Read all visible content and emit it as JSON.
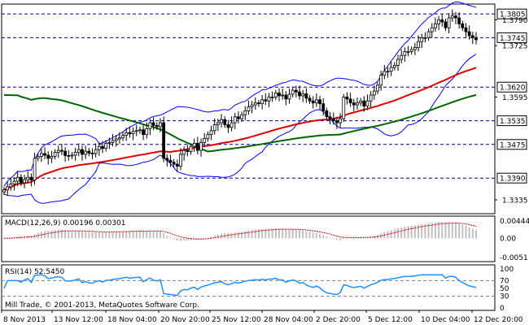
{
  "chart_data": [
    {
      "type": "line",
      "panel": "price",
      "ylim": [
        1.33,
        1.383
      ],
      "y_ticks": [
        "1.3790",
        "1.3725",
        "1.3595",
        "1.3335"
      ],
      "levels": [
        "1.3805",
        "1.3745",
        "1.3620",
        "1.3535",
        "1.3475",
        "1.3390"
      ],
      "x_count": 140,
      "colors": {
        "candles": "#000000",
        "bands": "#0000ff",
        "ma_red": "#dd0000",
        "ma_green": "#006600",
        "levels": "#0000aa"
      },
      "series": [
        {
          "values": [
            1.336,
            1.3368,
            1.3375,
            1.3382,
            1.3392,
            1.3378,
            1.3386,
            1.3392,
            1.3385,
            1.344,
            1.3445,
            1.3452,
            1.3448,
            1.344,
            1.3445,
            1.3455,
            1.346,
            1.3458,
            1.3447,
            1.3446,
            1.3448,
            1.3455,
            1.3462,
            1.345,
            1.3458,
            1.3453,
            1.3452,
            1.3462,
            1.347,
            1.3465,
            1.3478,
            1.348,
            1.3485,
            1.3489,
            1.3492,
            1.3498,
            1.3505,
            1.3502,
            1.3508,
            1.351,
            1.3512,
            1.35,
            1.3515,
            1.353,
            1.3523,
            1.352,
            1.353,
            1.344,
            1.3435,
            1.343,
            1.3425,
            1.342,
            1.345,
            1.346,
            1.3457,
            1.347,
            1.3478,
            1.346,
            1.348,
            1.349,
            1.35,
            1.351,
            1.3525,
            1.353,
            1.3538,
            1.3525,
            1.3518,
            1.353,
            1.3545,
            1.354,
            1.355,
            1.356,
            1.357,
            1.3575,
            1.358,
            1.3578,
            1.3588,
            1.3585,
            1.3595,
            1.3595,
            1.3605,
            1.3598,
            1.36,
            1.359,
            1.3602,
            1.3612,
            1.3608,
            1.3598,
            1.3603,
            1.3592,
            1.3585,
            1.358,
            1.3588,
            1.3578,
            1.356,
            1.3545,
            1.354,
            1.3535,
            1.353,
            1.354,
            1.3595,
            1.359,
            1.358,
            1.3575,
            1.358,
            1.3585,
            1.3572,
            1.3585,
            1.36,
            1.361,
            1.3625,
            1.365,
            1.366,
            1.366,
            1.367,
            1.3675,
            1.369,
            1.37,
            1.371,
            1.371,
            1.3715,
            1.372,
            1.3735,
            1.3745,
            1.3745,
            1.376,
            1.377,
            1.378,
            1.379,
            1.3785,
            1.377,
            1.3795,
            1.38,
            1.3795,
            1.378,
            1.377,
            1.376,
            1.375,
            1.3745,
            1.374
          ]
        }
      ]
    },
    {
      "type": "bar",
      "panel": "macd",
      "title": "MACD(12,26,9) 0.00196 0.00301",
      "ylim": [
        -0.0051,
        0.00444
      ],
      "y_ticks": [
        "0.00444",
        "0.00",
        "-0.0051"
      ],
      "colors": {
        "hist": "#c0c0c0",
        "signal": "#dd0000"
      }
    },
    {
      "type": "line",
      "panel": "rsi",
      "title": "RSI(14) 52.5450",
      "ylim": [
        0,
        100
      ],
      "y_ticks": [
        "100",
        "70",
        "50",
        "30",
        "0"
      ],
      "levels": [
        70,
        30
      ],
      "colors": {
        "rsi": "#1e90ff",
        "levels": "#808080"
      }
    }
  ],
  "price_labels": [
    "1.3805",
    "1.3790",
    "1.3745",
    "1.3725",
    "1.3620",
    "1.3595",
    "1.3535",
    "1.3475",
    "1.3390",
    "1.3335"
  ],
  "macd_labels": [
    "0.00444",
    "0.00",
    "-0.0051"
  ],
  "rsi_labels": [
    "100",
    "70",
    "50",
    "30",
    "0"
  ],
  "x_labels": [
    "8 Nov 2013",
    "13 Nov 12:00",
    "18 Nov 04:00",
    "20 Nov 20:00",
    "25 Nov 12:00",
    "28 Nov 04:00",
    "2 Dec 20:00",
    "5 Dec 12:00",
    "10 Dec 04:00",
    "12 Dec 20:00"
  ],
  "copyright": "Mill Trade, © 2001-2013, MetaQuotes Software Corp."
}
